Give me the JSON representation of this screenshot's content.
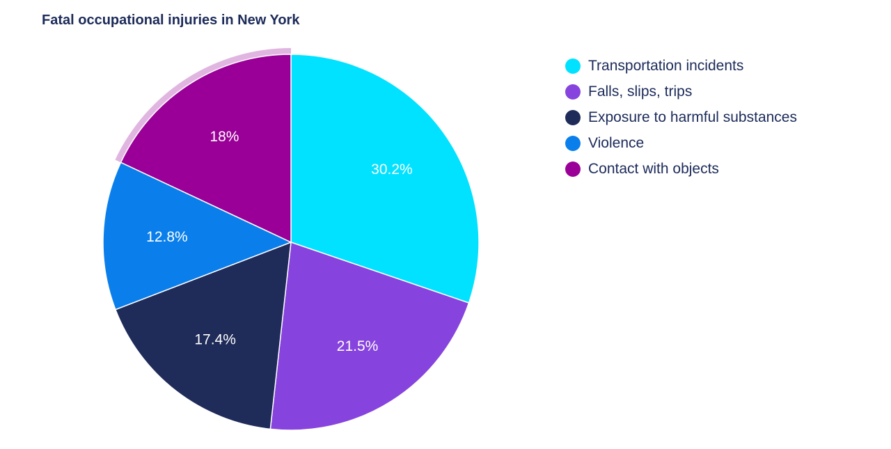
{
  "chart_data": {
    "type": "pie",
    "title": "Fatal occupational injuries in New York",
    "categories": [
      "Transportation incidents",
      "Falls, slips, trips",
      "Exposure to harmful substances",
      "Violence",
      "Contact with objects"
    ],
    "values": [
      30.2,
      21.5,
      17.4,
      12.8,
      18
    ],
    "value_labels": [
      "30.2%",
      "21.5%",
      "17.4%",
      "12.8%",
      "18%"
    ],
    "colors": [
      "#00e2ff",
      "#8743dd",
      "#1f2b59",
      "#0a7fec",
      "#9a0097"
    ],
    "highlighted_slice": "Contact with objects",
    "highlight_color": "#e0b6e1",
    "legend_position": "top-right"
  }
}
